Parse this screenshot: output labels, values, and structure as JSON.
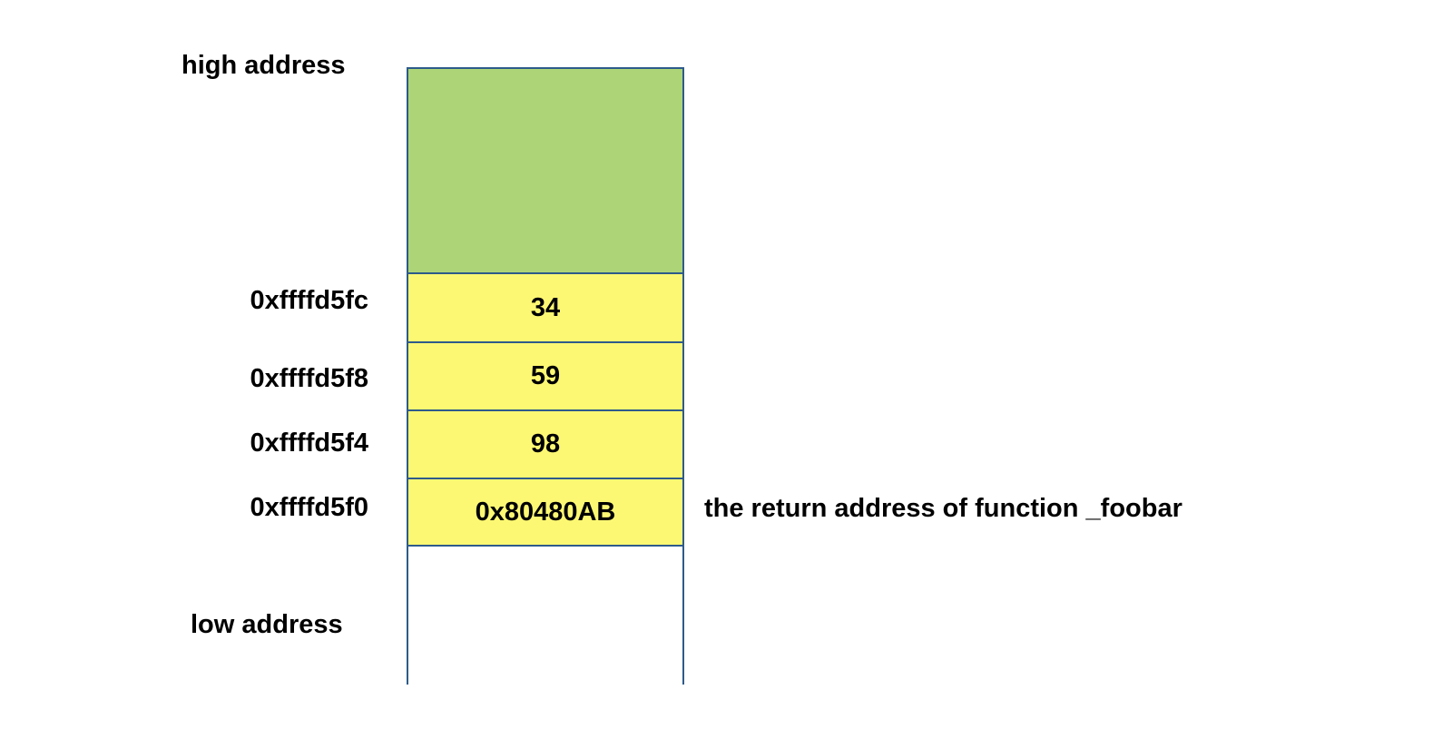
{
  "labels": {
    "high": "high address",
    "low": "low address"
  },
  "cells": [
    {
      "address": "0xffffd5fc",
      "value": "34"
    },
    {
      "address": "0xffffd5f8",
      "value": "59"
    },
    {
      "address": "0xffffd5f4",
      "value": "98"
    },
    {
      "address": "0xffffd5f0",
      "value": "0x80480AB"
    }
  ],
  "annotation": "the return address of function _foobar",
  "colors": {
    "border": "#2e5b8a",
    "green": "#add577",
    "yellow": "#fdf873"
  }
}
